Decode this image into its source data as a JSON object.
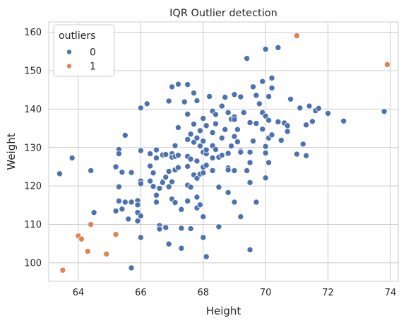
{
  "chart_data": {
    "type": "scatter",
    "title": "IQR Outlier detection",
    "xlabel": "Height",
    "ylabel": "Weight",
    "xlim": [
      63.05,
      74.25
    ],
    "ylim": [
      95.2,
      162.7
    ],
    "xticks": [
      64,
      66,
      68,
      70,
      72,
      74
    ],
    "yticks": [
      100,
      110,
      120,
      130,
      140,
      150,
      160
    ],
    "grid": true,
    "legend": {
      "title": "outliers",
      "placement": "top-left",
      "entries": [
        {
          "label": "0",
          "color": "#4c72b0"
        },
        {
          "label": "1",
          "color": "#dd8452"
        }
      ]
    },
    "series": [
      {
        "name": "0",
        "color": "#4c72b0",
        "points": [
          [
            63.4,
            123.2
          ],
          [
            63.8,
            127.3
          ],
          [
            64.4,
            124.0
          ],
          [
            64.5,
            113.1
          ],
          [
            65.2,
            125.0
          ],
          [
            65.2,
            113.5
          ],
          [
            65.3,
            129.5
          ],
          [
            65.3,
            128.4
          ],
          [
            65.3,
            119.8
          ],
          [
            65.3,
            116.1
          ],
          [
            65.4,
            123.6
          ],
          [
            65.4,
            114.0
          ],
          [
            65.5,
            133.2
          ],
          [
            65.5,
            115.8
          ],
          [
            65.6,
            111.4
          ],
          [
            65.7,
            123.5
          ],
          [
            65.7,
            115.8
          ],
          [
            65.7,
            98.7
          ],
          [
            65.9,
            113.1
          ],
          [
            65.9,
            116.2
          ],
          [
            65.9,
            115.1
          ],
          [
            65.9,
            110.9
          ],
          [
            66.0,
            129.2
          ],
          [
            66.0,
            121.3
          ],
          [
            66.0,
            120.6
          ],
          [
            66.0,
            112.2
          ],
          [
            66.0,
            106.6
          ],
          [
            66.0,
            140.3
          ],
          [
            66.2,
            141.4
          ],
          [
            66.3,
            128.4
          ],
          [
            66.3,
            125.2
          ],
          [
            66.3,
            121.3
          ],
          [
            66.4,
            123.4
          ],
          [
            66.4,
            119.9
          ],
          [
            66.5,
            129.4
          ],
          [
            66.5,
            127.3
          ],
          [
            66.5,
            117.6
          ],
          [
            66.5,
            115.8
          ],
          [
            66.6,
            119.4
          ],
          [
            66.6,
            109.7
          ],
          [
            66.6,
            108.8
          ],
          [
            66.7,
            128.1
          ],
          [
            66.7,
            121.2
          ],
          [
            66.7,
            120.9
          ],
          [
            66.8,
            128.2
          ],
          [
            66.8,
            122.3
          ],
          [
            66.8,
            109.2
          ],
          [
            66.9,
            123.8
          ],
          [
            66.9,
            119.8
          ],
          [
            66.9,
            104.9
          ],
          [
            66.9,
            142.1
          ],
          [
            67.0,
            145.8
          ],
          [
            67.0,
            128.4
          ],
          [
            67.0,
            127.5
          ],
          [
            67.0,
            121.1
          ],
          [
            67.0,
            116.6
          ],
          [
            67.1,
            127.7
          ],
          [
            67.1,
            124.2
          ],
          [
            67.1,
            115.7
          ],
          [
            67.1,
            130.5
          ],
          [
            67.2,
            146.5
          ],
          [
            67.2,
            128.0
          ],
          [
            67.2,
            135.2
          ],
          [
            67.2,
            124.8
          ],
          [
            67.3,
            113.9
          ],
          [
            67.3,
            109.0
          ],
          [
            67.3,
            103.8
          ],
          [
            67.4,
            141.9
          ],
          [
            67.5,
            146.4
          ],
          [
            67.5,
            138.7
          ],
          [
            67.5,
            132.1
          ],
          [
            67.5,
            127.7
          ],
          [
            67.5,
            125.1
          ],
          [
            67.5,
            120.2
          ],
          [
            67.5,
            116.1
          ],
          [
            67.6,
            133.5
          ],
          [
            67.6,
            127.0
          ],
          [
            67.6,
            119.7
          ],
          [
            67.6,
            108.9
          ],
          [
            67.7,
            144.2
          ],
          [
            67.7,
            136.1
          ],
          [
            67.7,
            131.4
          ],
          [
            67.7,
            122.9
          ],
          [
            67.8,
            142.2
          ],
          [
            67.8,
            132.5
          ],
          [
            67.8,
            126.5
          ],
          [
            67.8,
            122.0
          ],
          [
            67.8,
            117.1
          ],
          [
            67.8,
            114.3
          ],
          [
            67.9,
            134.4
          ],
          [
            67.9,
            130.4
          ],
          [
            67.9,
            123.1
          ],
          [
            67.9,
            115.1
          ],
          [
            68.0,
            137.6
          ],
          [
            68.0,
            128.8
          ],
          [
            68.0,
            124.9
          ],
          [
            68.0,
            123.4
          ],
          [
            68.0,
            106.6
          ],
          [
            68.0,
            112.0
          ],
          [
            68.0,
            131.7
          ],
          [
            68.1,
            135.7
          ],
          [
            68.1,
            128.4
          ],
          [
            68.1,
            125.4
          ],
          [
            68.1,
            101.6
          ],
          [
            68.1,
            129.4
          ],
          [
            68.2,
            143.3
          ],
          [
            68.3,
            139.5
          ],
          [
            68.3,
            133.9
          ],
          [
            68.3,
            130.5
          ],
          [
            68.3,
            127.3
          ],
          [
            68.3,
            124.0
          ],
          [
            68.4,
            136.2
          ],
          [
            68.4,
            138.6
          ],
          [
            68.4,
            129.5
          ],
          [
            68.5,
            127.5
          ],
          [
            68.5,
            119.7
          ],
          [
            68.5,
            109.4
          ],
          [
            68.6,
            140.8
          ],
          [
            68.6,
            132.5
          ],
          [
            68.6,
            128.0
          ],
          [
            68.7,
            143.1
          ],
          [
            68.7,
            134.7
          ],
          [
            68.8,
            139.1
          ],
          [
            68.8,
            128.5
          ],
          [
            68.8,
            124.7
          ],
          [
            68.8,
            124.2
          ],
          [
            68.8,
            118.3
          ],
          [
            68.9,
            137.4
          ],
          [
            68.9,
            130.4
          ],
          [
            69.0,
            143.8
          ],
          [
            69.0,
            138.0
          ],
          [
            69.0,
            137.3
          ],
          [
            69.0,
            132.9
          ],
          [
            69.0,
            124.0
          ],
          [
            69.0,
            115.8
          ],
          [
            69.1,
            134.7
          ],
          [
            69.1,
            131.5
          ],
          [
            69.2,
            143.2
          ],
          [
            69.2,
            129.1
          ],
          [
            69.2,
            128.8
          ],
          [
            69.2,
            112.0
          ],
          [
            69.3,
            139.1
          ],
          [
            69.4,
            153.2
          ],
          [
            69.4,
            124.0
          ],
          [
            69.5,
            136.5
          ],
          [
            69.5,
            128.8
          ],
          [
            69.5,
            126.1
          ],
          [
            69.5,
            120.9
          ],
          [
            69.5,
            103.4
          ],
          [
            69.6,
            145.8
          ],
          [
            69.6,
            131.7
          ],
          [
            69.7,
            136.3
          ],
          [
            69.7,
            115.8
          ],
          [
            69.7,
            143.6
          ],
          [
            69.8,
            141.4
          ],
          [
            69.9,
            147.2
          ],
          [
            69.9,
            139.1
          ],
          [
            69.9,
            134.8
          ],
          [
            70.0,
            155.6
          ],
          [
            70.0,
            138.2
          ],
          [
            70.0,
            130.3
          ],
          [
            70.0,
            128.6
          ],
          [
            70.0,
            122.1
          ],
          [
            70.1,
            143.3
          ],
          [
            70.1,
            137.1
          ],
          [
            70.1,
            132.5
          ],
          [
            70.1,
            126.1
          ],
          [
            70.2,
            148.1
          ],
          [
            70.2,
            145.5
          ],
          [
            70.2,
            133.3
          ],
          [
            70.4,
            156.0
          ],
          [
            70.4,
            136.7
          ],
          [
            70.5,
            131.9
          ],
          [
            70.6,
            136.4
          ],
          [
            70.7,
            135.7
          ],
          [
            70.7,
            134.2
          ],
          [
            70.8,
            142.6
          ],
          [
            71.0,
            128.3
          ],
          [
            71.1,
            140.3
          ],
          [
            71.2,
            130.9
          ],
          [
            71.3,
            127.9
          ],
          [
            71.3,
            135.9
          ],
          [
            71.4,
            140.8
          ],
          [
            71.5,
            136.8
          ],
          [
            71.6,
            139.6
          ],
          [
            71.7,
            140.2
          ],
          [
            72.0,
            138.9
          ],
          [
            72.5,
            136.9
          ],
          [
            73.8,
            139.4
          ]
        ]
      },
      {
        "name": "1",
        "color": "#dd8452",
        "points": [
          [
            63.5,
            98.1
          ],
          [
            64.0,
            107.0
          ],
          [
            64.1,
            106.2
          ],
          [
            64.3,
            103.0
          ],
          [
            64.4,
            110.0
          ],
          [
            64.9,
            102.3
          ],
          [
            65.2,
            107.4
          ],
          [
            71.0,
            159.1
          ],
          [
            73.9,
            151.6
          ]
        ]
      }
    ]
  }
}
